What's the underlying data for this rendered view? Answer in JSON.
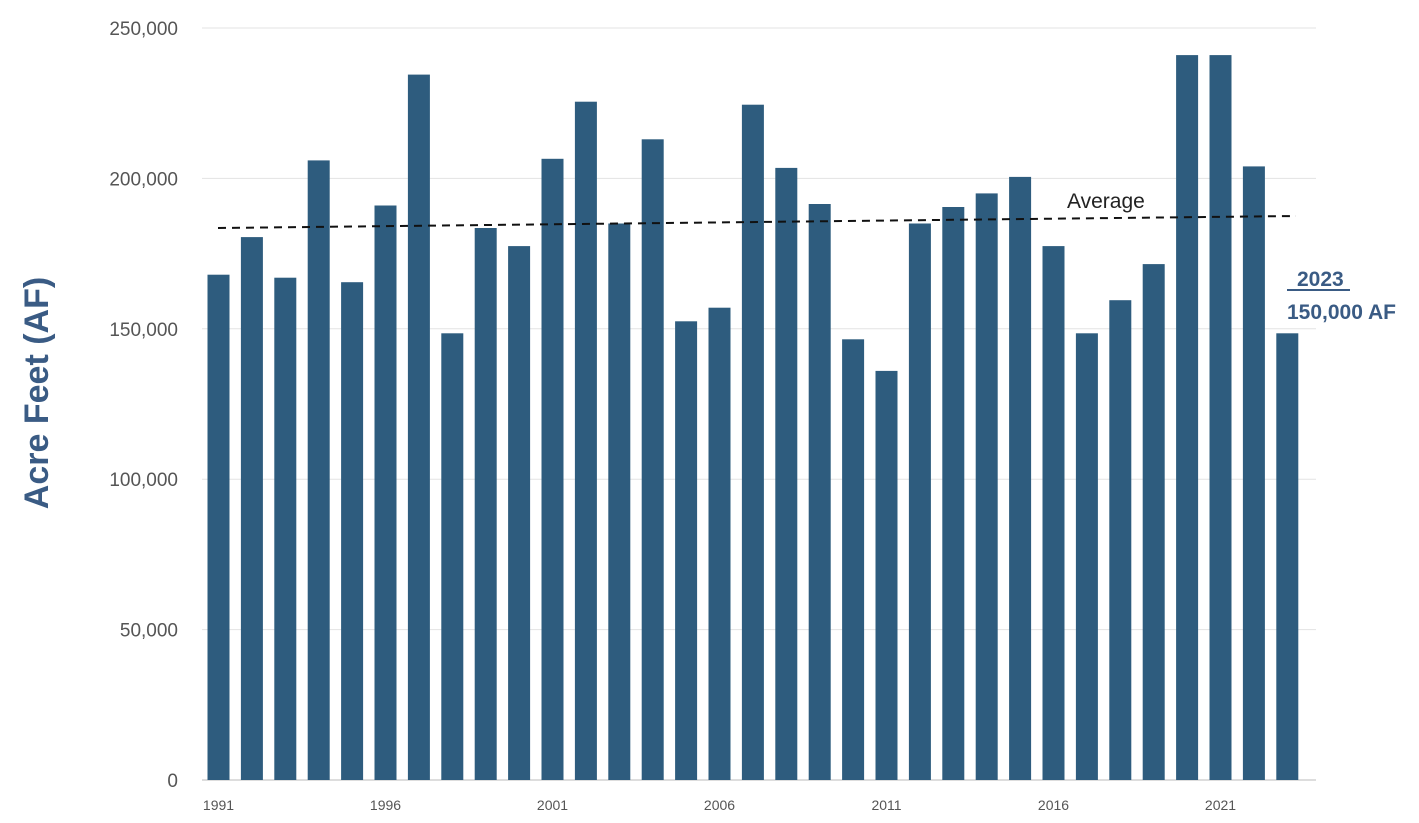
{
  "chart_data": {
    "type": "bar",
    "ylabel": "Acre Feet (AF)",
    "xlabel": "",
    "ylim": [
      0,
      250000
    ],
    "y_ticks": [
      0,
      50000,
      100000,
      150000,
      200000,
      250000
    ],
    "y_tick_labels": [
      "0",
      "50,000",
      "100,000",
      "150,000",
      "200,000",
      "250,000"
    ],
    "x_tick_labels": [
      "1991",
      "1996",
      "2001",
      "2006",
      "2011",
      "2016",
      "2021"
    ],
    "x_tick_years": [
      1991,
      1996,
      2001,
      2006,
      2011,
      2016,
      2021
    ],
    "categories": [
      1991,
      1992,
      1993,
      1994,
      1995,
      1996,
      1997,
      1998,
      1999,
      2000,
      2001,
      2002,
      2003,
      2004,
      2005,
      2006,
      2007,
      2008,
      2009,
      2010,
      2011,
      2012,
      2013,
      2014,
      2015,
      2016,
      2017,
      2018,
      2019,
      2020,
      2021,
      2022,
      2023
    ],
    "values": [
      168000,
      180500,
      167000,
      206000,
      165500,
      191000,
      234500,
      148500,
      183500,
      177500,
      206500,
      225500,
      185000,
      213000,
      152500,
      157000,
      224500,
      203500,
      191500,
      146500,
      136000,
      185000,
      190500,
      195000,
      200500,
      177500,
      148500,
      159500,
      171500,
      241000,
      241000,
      204000,
      148500
    ],
    "bar_color": "#2e5c7e",
    "average_line": {
      "label": "Average",
      "start_value": 183500,
      "end_value": 187500
    },
    "callout": {
      "year": "2023",
      "text": "150,000 AF"
    },
    "grid": true
  }
}
